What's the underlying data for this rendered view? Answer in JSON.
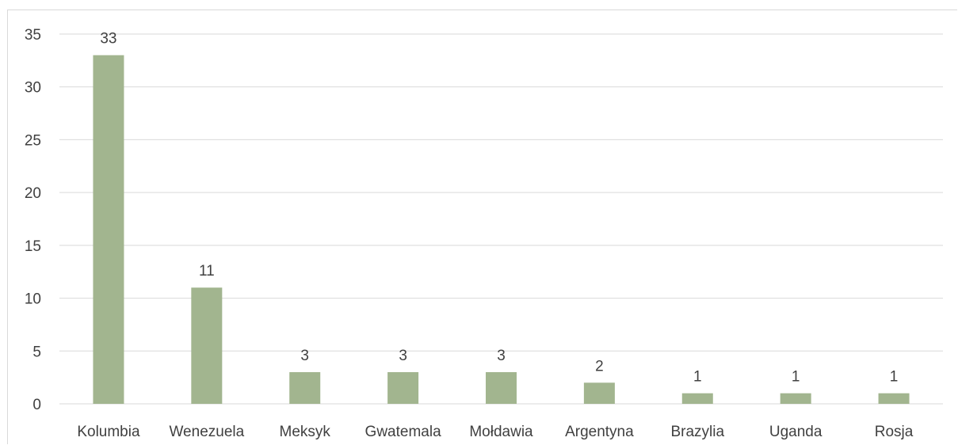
{
  "chart_data": {
    "type": "bar",
    "title": "",
    "xlabel": "",
    "ylabel": "",
    "categories": [
      "Kolumbia",
      "Wenezuela",
      "Meksyk",
      "Gwatemala",
      "Mołdawia",
      "Argentyna",
      "Brazylia",
      "Uganda",
      "Rosja"
    ],
    "values": [
      33,
      11,
      3,
      3,
      3,
      2,
      1,
      1,
      1
    ],
    "data_labels": [
      "33",
      "11",
      "3",
      "3",
      "3",
      "2",
      "1",
      "1",
      "1"
    ],
    "y_ticks": [
      "0",
      "5",
      "10",
      "15",
      "20",
      "25",
      "30",
      "35"
    ],
    "ylim": [
      0,
      35
    ],
    "grid": true,
    "legend": "none",
    "bar_color": "#a2b58f",
    "gridline_color": "#d9d9d9",
    "text_color": "#404040"
  }
}
